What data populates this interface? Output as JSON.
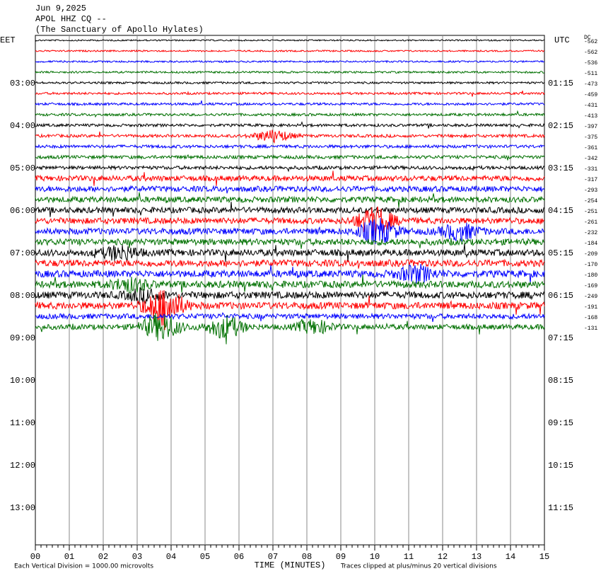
{
  "header": {
    "date": "Jun 9,2025",
    "station": "APOL HHZ CQ --",
    "site": "(The Sanctuary of Apollo Hylates)"
  },
  "left_axis": {
    "title": "EET",
    "labels": [
      "03:00",
      "04:00",
      "05:00",
      "06:00",
      "07:00",
      "08:00",
      "09:00",
      "10:00",
      "11:00",
      "12:00",
      "13:00"
    ]
  },
  "right_axis": {
    "title": "UTC",
    "labels": [
      "01:15",
      "02:15",
      "03:15",
      "04:15",
      "05:15",
      "06:15",
      "07:15",
      "08:15",
      "09:15",
      "10:15",
      "11:15"
    ]
  },
  "dc_label": "DC",
  "trace_offsets": [
    -562,
    -562,
    -536,
    -511,
    -473,
    -459,
    -431,
    -413,
    -397,
    -375,
    -361,
    -342,
    -331,
    -317,
    -293,
    -254,
    -251,
    -261,
    -232,
    -184,
    -209,
    -170,
    -180,
    -169,
    -249,
    -191,
    -168,
    -131
  ],
  "trace_colors": [
    "#000000",
    "#ff0000",
    "#0000ff",
    "#007000"
  ],
  "x_axis": {
    "title": "TIME (MINUTES)",
    "ticks": [
      "00",
      "01",
      "02",
      "03",
      "04",
      "05",
      "06",
      "07",
      "08",
      "09",
      "10",
      "11",
      "12",
      "13",
      "14",
      "15"
    ]
  },
  "footer": {
    "scale": "Each Vertical Division = 1000.00 microvolts",
    "clip": "Traces clipped at plus/minus 20 vertical divisions"
  }
}
